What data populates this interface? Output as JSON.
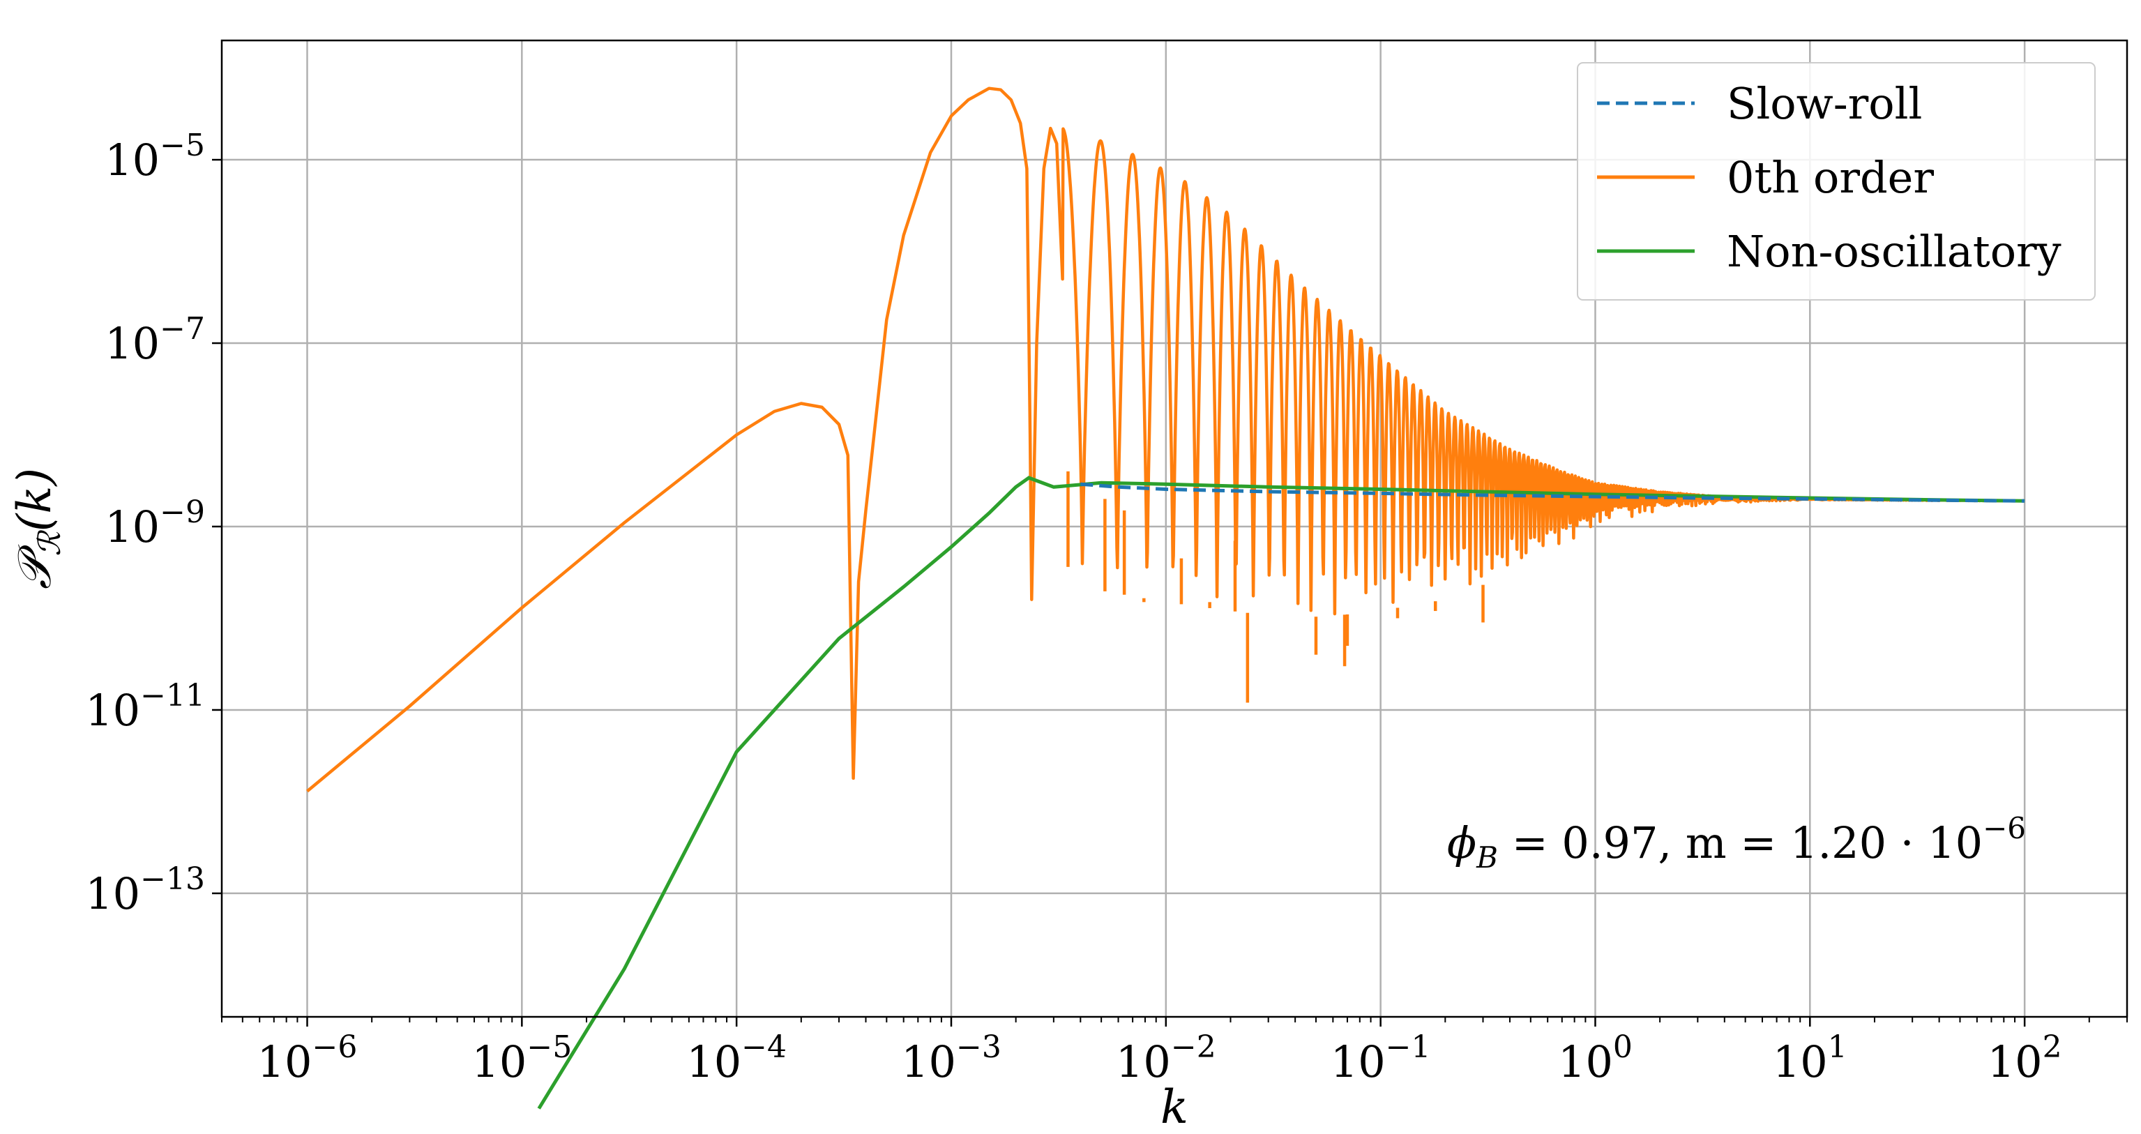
{
  "chart_data": {
    "type": "line",
    "xlabel": "k",
    "ylabel": "𝒫",
    "ylabel_sub": "ℛ",
    "ylabel_arg": "(k)",
    "xscale": "log",
    "yscale": "log",
    "xlim": [
      4e-07,
      300.0
    ],
    "ylim": [
      4.5e-15,
      0.0002
    ],
    "grid": true,
    "legend_position": "top-right",
    "x_ticks": [
      {
        "value": 1e-06,
        "base": "10",
        "exp": "−6"
      },
      {
        "value": 1e-05,
        "base": "10",
        "exp": "−5"
      },
      {
        "value": 0.0001,
        "base": "10",
        "exp": "−4"
      },
      {
        "value": 0.001,
        "base": "10",
        "exp": "−3"
      },
      {
        "value": 0.01,
        "base": "10",
        "exp": "−2"
      },
      {
        "value": 0.1,
        "base": "10",
        "exp": "−1"
      },
      {
        "value": 1.0,
        "base": "10",
        "exp": "0"
      },
      {
        "value": 10.0,
        "base": "10",
        "exp": "1"
      },
      {
        "value": 100.0,
        "base": "10",
        "exp": "2"
      }
    ],
    "y_ticks": [
      {
        "value": 1e-13,
        "base": "10",
        "exp": "−13"
      },
      {
        "value": 1e-11,
        "base": "10",
        "exp": "−11"
      },
      {
        "value": 1e-09,
        "base": "10",
        "exp": "−9"
      },
      {
        "value": 1e-07,
        "base": "10",
        "exp": "−7"
      },
      {
        "value": 1e-05,
        "base": "10",
        "exp": "−5"
      }
    ],
    "annotation": "ϕ_B = 0.97, m = 1.20 · 10^−6",
    "annotation_parts": {
      "phi": "ϕ",
      "phi_sub": "B",
      "mid": " = 0.97,  m = 1.20 · 10",
      "exp": "−6"
    },
    "series": [
      {
        "name": "Slow-roll",
        "color": "#1f77b4",
        "style": "dashed",
        "x": [
          0.004,
          0.006,
          0.01,
          0.03,
          0.1,
          0.3,
          1.0,
          3.0,
          10,
          30,
          100
        ],
        "y": [
          2.9e-09,
          2.7e-09,
          2.55e-09,
          2.4e-09,
          2.3e-09,
          2.2e-09,
          2.12e-09,
          2.05e-09,
          2e-09,
          1.95e-09,
          1.9e-09
        ]
      },
      {
        "name": "0th order",
        "color": "#ff7f0e",
        "style": "solid",
        "envelope_upper": {
          "x": [
            0.0033,
            0.005,
            0.008,
            0.012,
            0.02,
            0.04,
            0.07,
            0.12,
            0.2,
            0.4,
            0.7,
            1.0,
            2.0,
            4.0,
            10,
            100
          ],
          "y": [
            2.2e-05,
            1.6e-05,
            1e-05,
            6e-06,
            2.5e-06,
            5e-07,
            1.5e-07,
            5e-08,
            1.8e-08,
            7e-09,
            4e-09,
            3e-09,
            2.4e-09,
            2.1e-09,
            2e-09,
            1.9e-09
          ]
        },
        "envelope_lower": {
          "x": [
            0.0033,
            0.005,
            0.01,
            0.02,
            0.04,
            0.07,
            0.12,
            0.2,
            0.4,
            0.7,
            1.0,
            2.0,
            4.0,
            10,
            100
          ],
          "y": [
            4e-10,
            2e-10,
            1.5e-10,
            1.2e-10,
            1e-10,
            1.1e-10,
            1.3e-10,
            1.6e-10,
            3e-10,
            6e-10,
            1e-09,
            1.5e-09,
            1.8e-09,
            1.95e-09,
            1.9e-09
          ]
        },
        "early_x": [
          1e-06,
          3e-06,
          1e-05,
          3e-05,
          0.0001,
          0.00015,
          0.0002,
          0.00025,
          0.0003,
          0.00033,
          0.00035,
          0.00037,
          0.0004,
          0.0005,
          0.0006,
          0.0008,
          0.001,
          0.0012,
          0.0015,
          0.0017,
          0.0019,
          0.0021,
          0.00225,
          0.00233,
          0.00237,
          0.0025,
          0.0027,
          0.0029,
          0.0031,
          0.0033
        ],
        "early_y": [
          1.3e-12,
          1.1e-11,
          1.3e-10,
          1.1e-09,
          1e-08,
          1.8e-08,
          2.2e-08,
          2e-08,
          1.3e-08,
          6e-09,
          1.8e-12,
          2.5e-10,
          1.5e-09,
          1.8e-07,
          1.5e-06,
          1.2e-05,
          3e-05,
          4.5e-05,
          6e-05,
          5.8e-05,
          4.5e-05,
          2.5e-05,
          8e-06,
          1e-08,
          1.6e-10,
          1e-07,
          8e-06,
          2.2e-05,
          1.5e-05,
          5e-07
        ],
        "dips": [
          {
            "x": 0.0035,
            "y": 4e-09
          },
          {
            "x": 0.0052,
            "y": 2e-09
          },
          {
            "x": 0.0064,
            "y": 1.5e-09
          },
          {
            "x": 0.0079,
            "y": 1.5e-10
          },
          {
            "x": 0.0118,
            "y": 4.5e-10
          },
          {
            "x": 0.016,
            "y": 1.5e-10
          },
          {
            "x": 0.021,
            "y": 7e-10
          },
          {
            "x": 0.024,
            "y": 1.2e-11
          },
          {
            "x": 0.05,
            "y": 4e-11
          },
          {
            "x": 0.068,
            "y": 3e-11
          },
          {
            "x": 0.07,
            "y": 5e-11
          },
          {
            "x": 0.12,
            "y": 1e-10
          },
          {
            "x": 0.18,
            "y": 1.2e-10
          },
          {
            "x": 0.3,
            "y": 9e-11
          }
        ]
      },
      {
        "name": "Non-oscillatory",
        "color": "#2ca02c",
        "style": "solid",
        "x": [
          1.2e-05,
          3e-05,
          0.0001,
          0.0003,
          0.0006,
          0.001,
          0.0015,
          0.002,
          0.0023,
          0.003,
          0.005,
          0.01,
          0.03,
          0.1,
          0.3,
          1,
          3,
          10,
          30,
          100
        ],
        "y": [
          4.5e-15,
          1.5e-13,
          3.5e-11,
          6e-10,
          2.2e-09,
          6e-09,
          1.4e-08,
          2.7e-08,
          3.4e-08,
          2.7e-08,
          3e-08,
          2.9e-08,
          2.7e-08,
          2.55e-08,
          2.4e-08,
          2.25e-08,
          2.15e-08,
          2.05e-08,
          1.97e-08,
          1.9e-08
        ]
      }
    ]
  }
}
